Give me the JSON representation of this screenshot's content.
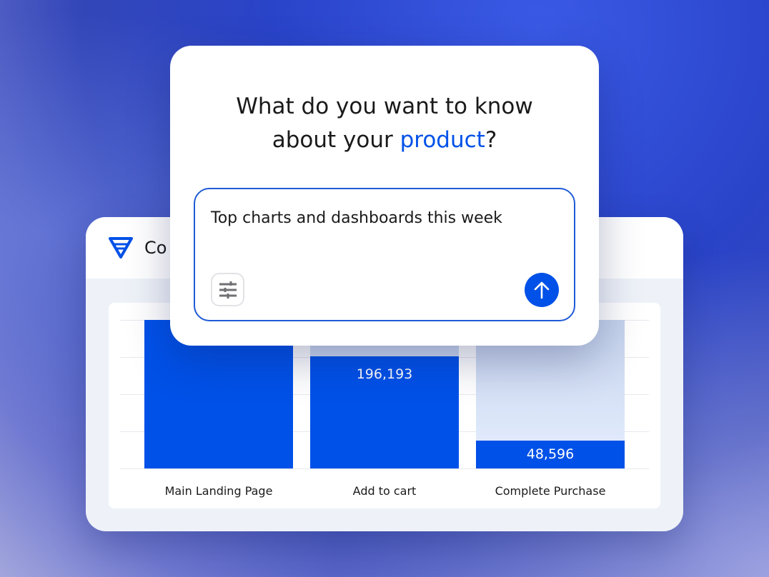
{
  "background_colors": {
    "accent": "#0051e8",
    "border": "#1f5bd6"
  },
  "dashboard_card": {
    "title": "Co",
    "logo_icon": "funnel-icon"
  },
  "chart_data": {
    "type": "bar",
    "categories": [
      "Main Landing Page",
      "Add to cart",
      "Complete Purchase"
    ],
    "values": [
      null,
      196193,
      48596
    ],
    "data_labels": [
      "",
      "196,193",
      "48,596"
    ],
    "grid": true
  },
  "prompt": {
    "question_part1": "What do you want to know",
    "question_part2": "about your ",
    "question_highlight": "product",
    "question_end": "?",
    "input_value": "Top charts and dashboards this week",
    "filter_icon": "sliders-icon",
    "send_icon": "arrow-up-icon"
  }
}
